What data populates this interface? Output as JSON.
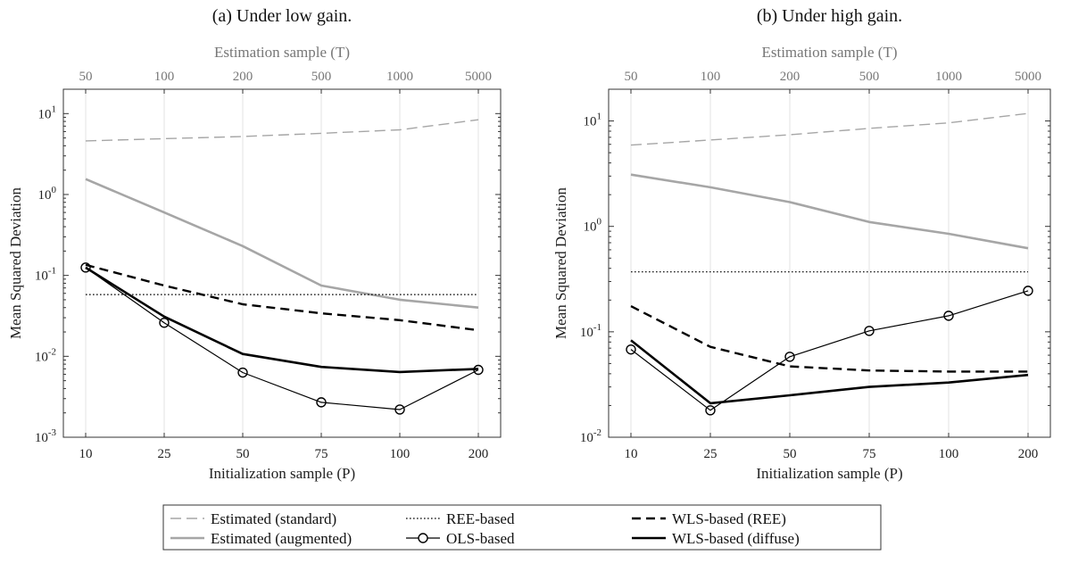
{
  "chart_data": [
    {
      "type": "line",
      "title": "(a) Under low gain.",
      "xlabel": "Initialization sample (P)",
      "x2label": "Estimation sample (T)",
      "ylabel": "Mean Squared Deviation",
      "categories": [
        "10",
        "25",
        "50",
        "75",
        "100",
        "200"
      ],
      "top_categories": [
        "50",
        "100",
        "200",
        "500",
        "1000",
        "5000"
      ],
      "y_scale": "log",
      "ylim": [
        0.001,
        20
      ],
      "y_ticks": [
        {
          "value": 0.001,
          "base": "10",
          "exp": "-3"
        },
        {
          "value": 0.01,
          "base": "10",
          "exp": "-2"
        },
        {
          "value": 0.1,
          "base": "10",
          "exp": "-1"
        },
        {
          "value": 1,
          "base": "10",
          "exp": "0"
        },
        {
          "value": 10,
          "base": "10",
          "exp": "1"
        }
      ],
      "grid": "vertical",
      "series": [
        {
          "name": "Estimated (standard)",
          "values": [
            4.6,
            4.9,
            5.2,
            5.7,
            6.3,
            8.4
          ],
          "color": "#a6a6a6",
          "style": "dashed-thin"
        },
        {
          "name": "Estimated (augmented)",
          "values": [
            1.55,
            0.6,
            0.23,
            0.075,
            0.05,
            0.04
          ],
          "color": "#a6a6a6",
          "style": "solid-thick"
        },
        {
          "name": "REE-based",
          "values": [
            0.058,
            0.058,
            0.058,
            0.058,
            0.058,
            0.058
          ],
          "color": "#000000",
          "style": "dotted"
        },
        {
          "name": "OLS-based",
          "values": [
            0.125,
            0.026,
            0.0063,
            0.0027,
            0.0022,
            0.0068
          ],
          "color": "#000000",
          "style": "circle"
        },
        {
          "name": "WLS-based (REE)",
          "values": [
            0.135,
            0.075,
            0.044,
            0.034,
            0.028,
            0.021
          ],
          "color": "#000000",
          "style": "dashed-thick"
        },
        {
          "name": "WLS-based (diffuse)",
          "values": [
            0.125,
            0.031,
            0.0107,
            0.0074,
            0.0064,
            0.007
          ],
          "color": "#000000",
          "style": "solid-thick"
        }
      ]
    },
    {
      "type": "line",
      "title": "(b) Under high gain.",
      "xlabel": "Initialization sample (P)",
      "x2label": "Estimation sample (T)",
      "ylabel": "Mean Squared Deviation",
      "categories": [
        "10",
        "25",
        "50",
        "75",
        "100",
        "200"
      ],
      "top_categories": [
        "50",
        "100",
        "200",
        "500",
        "1000",
        "5000"
      ],
      "y_scale": "log",
      "ylim": [
        0.01,
        20
      ],
      "y_ticks": [
        {
          "value": 0.01,
          "base": "10",
          "exp": "-2"
        },
        {
          "value": 0.1,
          "base": "10",
          "exp": "-1"
        },
        {
          "value": 1,
          "base": "10",
          "exp": "0"
        },
        {
          "value": 10,
          "base": "10",
          "exp": "1"
        }
      ],
      "grid": "vertical",
      "series": [
        {
          "name": "Estimated (standard)",
          "values": [
            5.9,
            6.6,
            7.4,
            8.5,
            9.6,
            11.8
          ],
          "color": "#a6a6a6",
          "style": "dashed-thin"
        },
        {
          "name": "Estimated (augmented)",
          "values": [
            3.1,
            2.35,
            1.7,
            1.1,
            0.85,
            0.62
          ],
          "color": "#a6a6a6",
          "style": "solid-thick"
        },
        {
          "name": "REE-based",
          "values": [
            0.37,
            0.37,
            0.37,
            0.37,
            0.37,
            0.37
          ],
          "color": "#000000",
          "style": "dotted"
        },
        {
          "name": "OLS-based",
          "values": [
            0.068,
            0.018,
            0.058,
            0.102,
            0.142,
            0.245
          ],
          "color": "#000000",
          "style": "circle"
        },
        {
          "name": "WLS-based (REE)",
          "values": [
            0.175,
            0.072,
            0.047,
            0.043,
            0.042,
            0.042
          ],
          "color": "#000000",
          "style": "dashed-thick"
        },
        {
          "name": "WLS-based (diffuse)",
          "values": [
            0.083,
            0.021,
            0.025,
            0.03,
            0.033,
            0.039
          ],
          "color": "#000000",
          "style": "solid-thick"
        }
      ]
    }
  ],
  "legend": {
    "placement": "bottom-center",
    "entries": [
      {
        "label": "Estimated (standard)",
        "style": "dashed-thin",
        "color": "#a6a6a6"
      },
      {
        "label": "REE-based",
        "style": "dotted",
        "color": "#000000"
      },
      {
        "label": "WLS-based (REE)",
        "style": "dashed-thick",
        "color": "#000000"
      },
      {
        "label": "Estimated (augmented)",
        "style": "solid-thick",
        "color": "#a6a6a6"
      },
      {
        "label": "OLS-based",
        "style": "circle",
        "color": "#000000"
      },
      {
        "label": "WLS-based (diffuse)",
        "style": "solid-thick",
        "color": "#000000"
      }
    ]
  }
}
